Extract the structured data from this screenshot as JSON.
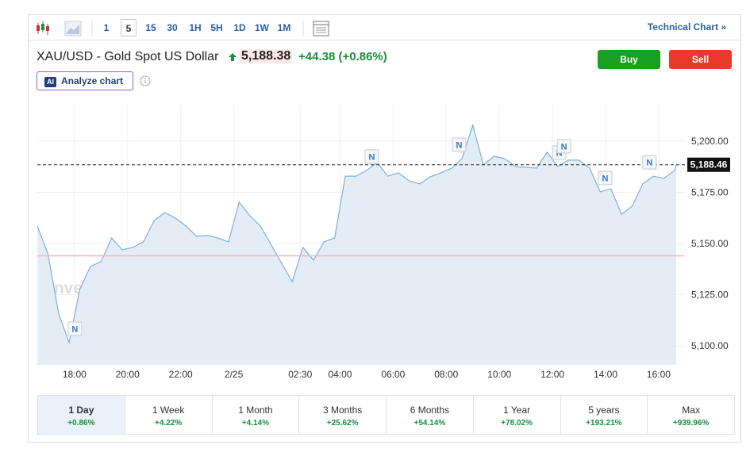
{
  "toolbar": {
    "intervals": [
      "1",
      "5",
      "15",
      "30",
      "1H",
      "5H",
      "1D",
      "1W",
      "1M"
    ],
    "active_index": 1,
    "technical_chart": "Technical Chart"
  },
  "header": {
    "title": "XAU/USD - Gold Spot US Dollar",
    "price": "5,188.38",
    "change": "+44.38",
    "change_percent": "(+0.86%)",
    "buy": "Buy",
    "sell": "Sell",
    "ai_badge": "AI",
    "analyze": "Analyze chart"
  },
  "chart_data": {
    "type": "area",
    "color": "#7fb0d9",
    "fill": "#e4edf6",
    "watermark": "Investing.com",
    "x": [
      16.6,
      17,
      17.4,
      17.8,
      18.2,
      18.6,
      19,
      19.4,
      19.8,
      20.2,
      20.6,
      21,
      21.4,
      21.8,
      22.2,
      22.6,
      23,
      23.4,
      23.8,
      24.2,
      24.6,
      25,
      25.4,
      25.8,
      26.2,
      26.6,
      27,
      27.4,
      27.8,
      28.2,
      28.6,
      29,
      29.4,
      29.8,
      30.2,
      30.6,
      31,
      31.4,
      31.8,
      32.2,
      32.6,
      33,
      33.4,
      33.8,
      34.2,
      34.6,
      35,
      35.4,
      35.8,
      36.2,
      36.6,
      37,
      37.4,
      37.8,
      38.2,
      38.6,
      39,
      39.4,
      39.8,
      40.2,
      40.6,
      40.66
    ],
    "values": [
      5158.5,
      5145.0,
      5115.9,
      5101.6,
      5127.5,
      5138.8,
      5141.1,
      5152.7,
      5146.9,
      5148.1,
      5150.8,
      5161.2,
      5165.1,
      5162.4,
      5158.5,
      5153.5,
      5153.9,
      5152.7,
      5150.8,
      5170.2,
      5163.6,
      5158.5,
      5149.6,
      5140.3,
      5131.4,
      5148.1,
      5141.9,
      5150.8,
      5152.7,
      5182.9,
      5182.9,
      5185.7,
      5189.5,
      5182.9,
      5184.5,
      5180.6,
      5179.1,
      5182.6,
      5184.5,
      5186.8,
      5191.5,
      5207.8,
      5188.4,
      5192.6,
      5191.5,
      5187.6,
      5187.2,
      5186.8,
      5194.6,
      5187.6,
      5190.7,
      5190.7,
      5186.8,
      5175.2,
      5176.7,
      5164.3,
      5168.2,
      5179.1,
      5182.9,
      5181.8,
      5185.7,
      5188.46
    ],
    "xlim": [
      16.6,
      40.66
    ],
    "ylim": [
      5090.7,
      5217.8
    ],
    "xticks": [
      {
        "value": 18,
        "label": "18:00"
      },
      {
        "value": 20,
        "label": "20:00"
      },
      {
        "value": 22,
        "label": "22:00"
      },
      {
        "value": 24,
        "label": "2/25"
      },
      {
        "value": 26.5,
        "label": "02:30"
      },
      {
        "value": 28,
        "label": "04:00"
      },
      {
        "value": 30,
        "label": "06:00"
      },
      {
        "value": 32,
        "label": "08:00"
      },
      {
        "value": 34,
        "label": "10:00"
      },
      {
        "value": 36,
        "label": "12:00"
      },
      {
        "value": 38,
        "label": "14:00"
      },
      {
        "value": 40,
        "label": "16:00"
      }
    ],
    "yticks": [
      {
        "value": 5100,
        "label": "5,100.00"
      },
      {
        "value": 5125,
        "label": "5,125.00"
      },
      {
        "value": 5150,
        "label": "5,150.00"
      },
      {
        "value": 5175,
        "label": "5,175.00"
      },
      {
        "value": 5200,
        "label": "5,200.00"
      }
    ],
    "grid": true,
    "reference_line": {
      "value": 5144,
      "color": "#f2b8b8"
    },
    "current": {
      "value": 5188.46,
      "label": "5,188.46"
    },
    "annotations": [
      {
        "x": 18.0,
        "label": "N"
      },
      {
        "x": 29.18,
        "label": "N"
      },
      {
        "x": 32.47,
        "label": "N"
      },
      {
        "x": 36.24,
        "label": "N"
      },
      {
        "x": 36.42,
        "label": "N"
      },
      {
        "x": 37.97,
        "label": "N"
      },
      {
        "x": 39.64,
        "label": "N"
      }
    ]
  },
  "periods": {
    "selected": 0,
    "items": [
      {
        "label": "1 Day",
        "change": "+0.86%"
      },
      {
        "label": "1 Week",
        "change": "+4.22%"
      },
      {
        "label": "1 Month",
        "change": "+4.14%"
      },
      {
        "label": "3 Months",
        "change": "+25.62%"
      },
      {
        "label": "6 Months",
        "change": "+54.14%"
      },
      {
        "label": "1 Year",
        "change": "+78.02%"
      },
      {
        "label": "5 years",
        "change": "+193.21%"
      },
      {
        "label": "Max",
        "change": "+939.96%"
      }
    ]
  }
}
